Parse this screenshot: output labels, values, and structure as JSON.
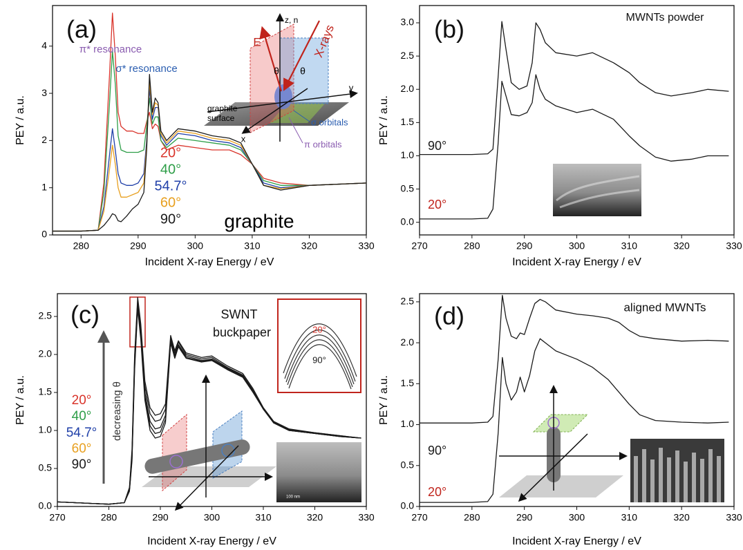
{
  "chart_data": [
    {
      "type": "line",
      "panel_label": "(a)",
      "xlabel": "Incident X-ray Energy / eV",
      "ylabel": "PEY / a.u.",
      "xlim": [
        275,
        330
      ],
      "ylim": [
        0,
        4.86
      ],
      "xticks": [
        280,
        290,
        300,
        310,
        320,
        330
      ],
      "yticks": [
        0,
        1,
        2,
        3,
        4
      ],
      "x": [
        275,
        280,
        283,
        284,
        285,
        285.5,
        286,
        286.5,
        287,
        288,
        289,
        290,
        291,
        291.5,
        292,
        292.5,
        293,
        293.5,
        294,
        295,
        297,
        300,
        303,
        306,
        308,
        310,
        312,
        315,
        320,
        330
      ],
      "series": [
        {
          "name": "20°",
          "color": "#d9342b",
          "values": [
            0.08,
            0.08,
            0.1,
            1.1,
            3.4,
            4.7,
            3.8,
            2.6,
            2.3,
            2.2,
            2.2,
            2.15,
            2.15,
            2.4,
            2.6,
            2.25,
            2.35,
            2.3,
            2.0,
            1.8,
            1.9,
            1.85,
            1.8,
            1.8,
            1.7,
            1.5,
            1.2,
            1.1,
            1.05,
            1.1
          ]
        },
        {
          "name": "40°",
          "color": "#2e9e48",
          "values": [
            0.08,
            0.08,
            0.1,
            0.9,
            2.8,
            3.9,
            3.2,
            2.1,
            1.8,
            1.75,
            1.75,
            1.75,
            1.8,
            2.3,
            2.9,
            2.35,
            2.5,
            2.5,
            2.0,
            1.85,
            2.05,
            2.0,
            1.95,
            1.9,
            1.8,
            1.5,
            1.15,
            1.05,
            1.05,
            1.1
          ]
        },
        {
          "name": "54.7°",
          "color": "#1f3fa8",
          "values": [
            0.08,
            0.08,
            0.1,
            0.6,
            1.7,
            2.25,
            1.8,
            1.3,
            1.1,
            1.05,
            1.05,
            1.1,
            1.3,
            2.0,
            3.1,
            2.45,
            2.7,
            2.7,
            2.1,
            1.9,
            2.15,
            2.1,
            2.0,
            1.95,
            1.85,
            1.5,
            1.1,
            1.0,
            1.05,
            1.1
          ]
        },
        {
          "name": "60°",
          "color": "#e8a020",
          "values": [
            0.08,
            0.08,
            0.1,
            0.5,
            1.4,
            1.9,
            1.5,
            1.0,
            0.8,
            0.8,
            0.85,
            0.9,
            1.1,
            1.9,
            3.25,
            2.55,
            2.8,
            2.75,
            2.15,
            1.95,
            2.2,
            2.15,
            2.05,
            2.0,
            1.9,
            1.5,
            1.05,
            0.98,
            1.05,
            1.1
          ]
        },
        {
          "name": "90°",
          "color": "#1a1a1a",
          "values": [
            0.08,
            0.08,
            0.1,
            0.2,
            0.35,
            0.45,
            0.42,
            0.3,
            0.28,
            0.4,
            0.55,
            0.65,
            0.9,
            1.8,
            3.4,
            2.6,
            2.9,
            2.8,
            2.2,
            2.0,
            2.25,
            2.2,
            2.1,
            2.05,
            1.95,
            1.5,
            1.05,
            0.95,
            1.05,
            1.1
          ]
        }
      ],
      "annotations": [
        {
          "text": "π* resonance",
          "color": "#8a5cb0"
        },
        {
          "text": "σ* resonance",
          "color": "#2a5db0"
        },
        {
          "text": "graphite",
          "color": "#000000"
        }
      ],
      "inset_labels": [
        {
          "text": "z, n",
          "color": "#000000"
        },
        {
          "text": "E",
          "color": "#c0241c"
        },
        {
          "text": "X-rays",
          "color": "#c0241c"
        },
        {
          "text": "θ",
          "color": "#000000"
        },
        {
          "text": "θ",
          "color": "#000000"
        },
        {
          "text": "y",
          "color": "#000000"
        },
        {
          "text": "x",
          "color": "#000000"
        },
        {
          "text": "graphite",
          "color": "#000000"
        },
        {
          "text": "surface",
          "color": "#000000"
        },
        {
          "text": "σ orbitals",
          "color": "#2a5db0"
        },
        {
          "text": "π orbitals",
          "color": "#8a5cb0"
        }
      ]
    },
    {
      "type": "line",
      "panel_label": "(b)",
      "title": "MWNTs powder",
      "xlabel": "Incident X-ray Energy / eV",
      "ylabel": "PEY / a.u.",
      "xlim": [
        270,
        330
      ],
      "ylim": [
        -0.19,
        3.26
      ],
      "xticks": [
        270,
        280,
        290,
        300,
        310,
        320,
        330
      ],
      "yticks": [
        {
          "value": 0,
          "label": "0.0"
        },
        0.5,
        {
          "value": 1,
          "label": "1.0"
        },
        1.5,
        {
          "value": 2,
          "label": "2.0"
        },
        2.5,
        {
          "value": 3,
          "label": "3.0"
        }
      ],
      "x": [
        270,
        280,
        283,
        284,
        285,
        285.7,
        286.5,
        287.5,
        289,
        290.5,
        291.5,
        292.2,
        293,
        294,
        296,
        300,
        303,
        307,
        310,
        312,
        315,
        318,
        322,
        325,
        329
      ],
      "series": [
        {
          "name": "90°",
          "color": "#1a1a1a",
          "label_color": "#1a1a1a",
          "values": [
            1.02,
            1.02,
            1.03,
            1.1,
            2.2,
            3.02,
            2.6,
            2.1,
            2.0,
            2.05,
            2.4,
            3.0,
            2.9,
            2.7,
            2.55,
            2.5,
            2.55,
            2.4,
            2.25,
            2.1,
            1.95,
            1.9,
            1.95,
            2.0,
            1.97
          ]
        },
        {
          "name": "20°",
          "color": "#1a1a1a",
          "label_color": "#c0241c",
          "values": [
            0.05,
            0.05,
            0.06,
            0.2,
            1.2,
            2.12,
            1.9,
            1.62,
            1.6,
            1.65,
            1.8,
            2.22,
            2.0,
            1.85,
            1.75,
            1.65,
            1.7,
            1.55,
            1.3,
            1.15,
            0.98,
            0.92,
            0.95,
            1.0,
            1.0
          ]
        }
      ]
    },
    {
      "type": "line",
      "panel_label": "(c)",
      "title_lines": [
        "SWNT",
        "buckpaper"
      ],
      "xlabel": "Incident X-ray Energy / eV",
      "ylabel": "PEY / a.u.",
      "xlim": [
        270,
        330
      ],
      "ylim": [
        0,
        2.8
      ],
      "xticks": [
        270,
        280,
        290,
        300,
        310,
        320,
        330
      ],
      "yticks": [
        {
          "value": 0,
          "label": "0.0"
        },
        0.5,
        {
          "value": 1,
          "label": "1.0"
        },
        1.5,
        {
          "value": 2,
          "label": "2.0"
        },
        2.5
      ],
      "x": [
        270,
        280,
        283,
        284,
        284.5,
        285,
        285.6,
        286.2,
        287,
        288,
        289,
        290,
        291,
        292,
        292.8,
        293.5,
        295,
        298,
        300,
        303,
        306,
        308,
        310,
        312,
        315,
        320,
        325,
        329
      ],
      "series": [
        {
          "name": "20°",
          "color": "#1a1a1a",
          "label_color": "#d9342b",
          "values": [
            0.06,
            0.03,
            0.05,
            0.25,
            0.75,
            2.0,
            2.75,
            2.4,
            1.65,
            1.3,
            1.2,
            1.22,
            1.35,
            2.25,
            2.05,
            2.18,
            2.02,
            1.96,
            1.98,
            1.85,
            1.75,
            1.55,
            1.3,
            1.12,
            1.02,
            0.97,
            0.93,
            0.9
          ]
        },
        {
          "name": "40°",
          "color": "#1a1a1a",
          "label_color": "#2e9e48",
          "values": [
            0.06,
            0.03,
            0.05,
            0.24,
            0.7,
            1.95,
            2.71,
            2.35,
            1.58,
            1.22,
            1.12,
            1.14,
            1.28,
            2.22,
            2.02,
            2.16,
            2.0,
            1.94,
            1.96,
            1.83,
            1.73,
            1.53,
            1.29,
            1.11,
            1.01,
            0.97,
            0.93,
            0.9
          ]
        },
        {
          "name": "54.7°",
          "color": "#1a1a1a",
          "label_color": "#1f3fa8",
          "values": [
            0.06,
            0.03,
            0.05,
            0.22,
            0.66,
            1.9,
            2.67,
            2.3,
            1.5,
            1.12,
            1.02,
            1.04,
            1.2,
            2.19,
            1.99,
            2.13,
            1.98,
            1.92,
            1.94,
            1.82,
            1.72,
            1.52,
            1.28,
            1.1,
            1.0,
            0.96,
            0.92,
            0.9
          ]
        },
        {
          "name": "60°",
          "color": "#1a1a1a",
          "label_color": "#e8a020",
          "values": [
            0.06,
            0.03,
            0.05,
            0.21,
            0.63,
            1.85,
            2.63,
            2.25,
            1.45,
            1.06,
            0.96,
            0.98,
            1.15,
            2.17,
            1.97,
            2.12,
            1.96,
            1.91,
            1.93,
            1.81,
            1.71,
            1.51,
            1.28,
            1.1,
            1.0,
            0.96,
            0.92,
            0.9
          ]
        },
        {
          "name": "90°",
          "color": "#1a1a1a",
          "label_color": "#1a1a1a",
          "values": [
            0.06,
            0.03,
            0.05,
            0.2,
            0.6,
            1.8,
            2.6,
            2.2,
            1.4,
            1.0,
            0.9,
            0.92,
            1.1,
            2.15,
            1.95,
            2.1,
            1.95,
            1.9,
            1.92,
            1.8,
            1.7,
            1.5,
            1.28,
            1.1,
            1.0,
            0.96,
            0.92,
            0.9
          ]
        }
      ],
      "annotations": [
        {
          "text": "decreasing θ",
          "color": "#333333"
        }
      ],
      "zoom_labels": [
        {
          "text": "20°",
          "color": "#d9342b"
        },
        {
          "text": "90°",
          "color": "#1a1a1a"
        }
      ],
      "photo_label": "100 nm"
    },
    {
      "type": "line",
      "panel_label": "(d)",
      "title": "aligned MWNTs",
      "xlabel": "Incident X-ray Energy / eV",
      "ylabel": "PEY / a.u.",
      "xlim": [
        270,
        330
      ],
      "ylim": [
        0,
        2.6
      ],
      "xticks": [
        270,
        280,
        290,
        300,
        310,
        320,
        330
      ],
      "yticks": [
        {
          "value": 0,
          "label": "0.0"
        },
        0.5,
        {
          "value": 1,
          "label": "1.0"
        },
        1.5,
        {
          "value": 2,
          "label": "2.0"
        },
        2.5
      ],
      "x": [
        270,
        280,
        283,
        284,
        285,
        285.8,
        286.5,
        287.5,
        288.5,
        289.2,
        290,
        291,
        292,
        293,
        294,
        296,
        300,
        303,
        306,
        308,
        310,
        312,
        315,
        320,
        325,
        329
      ],
      "series": [
        {
          "name": "90°",
          "color": "#1a1a1a",
          "label_color": "#1a1a1a",
          "values": [
            1.02,
            1.02,
            1.03,
            1.1,
            1.8,
            2.58,
            2.3,
            2.08,
            2.05,
            2.12,
            2.1,
            2.3,
            2.48,
            2.53,
            2.5,
            2.4,
            2.35,
            2.33,
            2.3,
            2.25,
            2.15,
            2.08,
            2.05,
            2.02,
            2.03,
            2.02
          ]
        },
        {
          "name": "20°",
          "color": "#1a1a1a",
          "label_color": "#c0241c",
          "values": [
            0.05,
            0.05,
            0.06,
            0.15,
            0.9,
            1.82,
            1.5,
            1.3,
            1.4,
            1.58,
            1.4,
            1.6,
            1.9,
            2.05,
            2.0,
            1.9,
            1.8,
            1.7,
            1.55,
            1.4,
            1.25,
            1.12,
            1.05,
            1.03,
            1.02,
            1.03
          ]
        }
      ]
    }
  ]
}
